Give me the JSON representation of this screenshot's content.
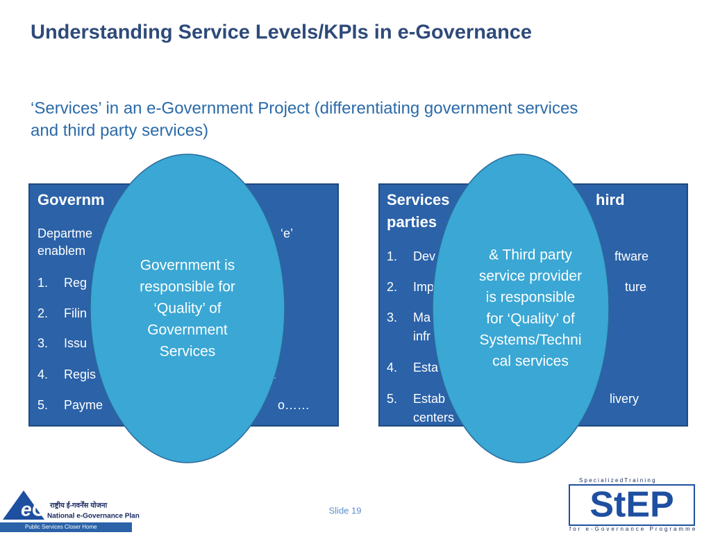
{
  "title": "Understanding Service Levels/KPIs in e-Governance",
  "subtitle": [
    "‘Services’ in an e-Government Project (differentiating government services",
    "and third party services)"
  ],
  "left_box": {
    "heading": "Governm",
    "line1": "Departme",
    "line1_end": "‘e’",
    "line2": "enablem",
    "items": [
      {
        "num": "1.",
        "text": "Reg"
      },
      {
        "num": "2.",
        "text": "Filin"
      },
      {
        "num": "3.",
        "text": "Issu"
      },
      {
        "num": "4.",
        "text": "Regis",
        "end": "."
      },
      {
        "num": "5.",
        "text": "Payme",
        "end": "o……"
      }
    ]
  },
  "right_box": {
    "heading": "Services",
    "heading_end": "hird",
    "heading2": "parties",
    "items": [
      {
        "num": "1.",
        "text": "Dev",
        "end": "ftware"
      },
      {
        "num": "2.",
        "text": "Imp",
        "end": "ture"
      },
      {
        "num": "3.",
        "text": "Ma",
        "text2": "infr"
      },
      {
        "num": "4.",
        "text": "Esta"
      },
      {
        "num": "5.",
        "text": "Estab",
        "end": "livery",
        "text2": "centers"
      }
    ]
  },
  "left_oval": [
    "Government is",
    "responsible for",
    "‘Quality’ of",
    "Government",
    "Services"
  ],
  "right_oval": [
    "&  Third party",
    "service provider",
    "is responsible",
    "for ‘Quality’ of",
    "Systems/Techni",
    "cal services"
  ],
  "footer": {
    "slide": "Slide 19",
    "left_logo": [
      "राष्ट्रीय ई-गवर्नेंस योजना",
      "National e-Governance Plan",
      "Public Services Closer Home"
    ],
    "right_logo": [
      "S p e c i a l i z e d   T r a i n i n g",
      "for e-Governance Programme"
    ]
  }
}
